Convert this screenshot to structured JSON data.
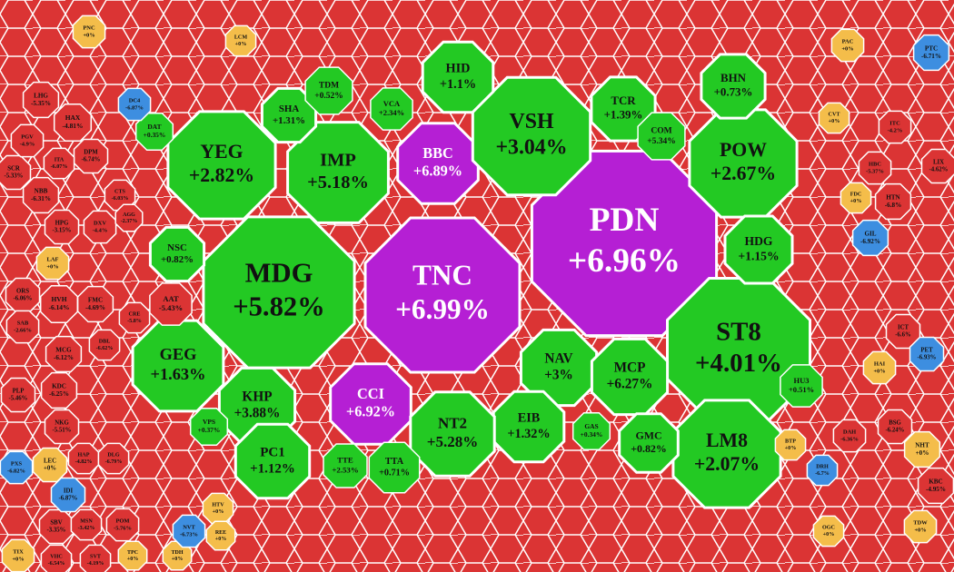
{
  "chart_data": {
    "type": "voronoi-treemap",
    "categories": [
      "TNC",
      "PDN",
      "MDG",
      "ST8",
      "BBC",
      "CCI",
      "VSH",
      "YEG",
      "IMP",
      "POW",
      "HDG",
      "NAV",
      "MCP",
      "EIB",
      "NT2",
      "LM8",
      "GEG",
      "KHP",
      "PC1",
      "HID",
      "TCR",
      "COM",
      "BHN",
      "SHA",
      "TDM",
      "NSC",
      "AAT",
      "GMC",
      "GAS",
      "HU3",
      "TTA",
      "TTE",
      "VPS",
      "VCA",
      "DAT",
      "HAX",
      "DPM",
      "NBB",
      "SCR",
      "HPG",
      "DXV",
      "FMC",
      "HVH",
      "CRE",
      "ORS",
      "SAB",
      "MCG",
      "KDC",
      "PLP",
      "NKG",
      "HAP",
      "DLG",
      "LHG",
      "PGV",
      "ITA",
      "CTS",
      "AGG",
      "DBL",
      "KBC",
      "ICT",
      "HTN",
      "LIX",
      "ITC",
      "HBC",
      "BSG",
      "DAH",
      "SBV",
      "MSN",
      "POM",
      "VHC",
      "SVT",
      "PNC",
      "LAF",
      "LEC",
      "BTP",
      "NHT",
      "TIX",
      "CVT",
      "FDC",
      "HAI",
      "PAC",
      "LCM",
      "TDW",
      "HTV",
      "REE",
      "OGC",
      "TPC",
      "TDH",
      "DC4",
      "PTC",
      "GIL",
      "PET",
      "NVT",
      "IDI",
      "PXS",
      "DRH"
    ],
    "values": [
      6.99,
      6.96,
      5.82,
      4.01,
      6.89,
      6.92,
      3.04,
      2.82,
      5.18,
      2.67,
      1.15,
      3,
      6.27,
      1.32,
      5.28,
      2.07,
      1.63,
      3.88,
      1.12,
      1.1,
      1.39,
      5.34,
      0.73,
      1.31,
      0.52,
      0.82,
      -5.43,
      0.82,
      0.34,
      0.51,
      0.71,
      2.53,
      0.37,
      2.34,
      0.35,
      -4.81,
      -6.74,
      -6.31,
      -5.33,
      -3.15,
      -4.4,
      -4.69,
      -6.14,
      -5.8,
      -6.06,
      -2.66,
      -6.12,
      -6.25,
      -5.46,
      -5.51,
      -4.82,
      -6.79,
      -5.35,
      -4.9,
      -6.07,
      -6.03,
      -2.37,
      -6.62,
      -4.95,
      -6.6,
      -6.8,
      -4.62,
      -4.2,
      -5.37,
      -6.24,
      -6.36,
      -3.35,
      -3.42,
      -5.76,
      -6.54,
      -4.19,
      0,
      0,
      0,
      0,
      0,
      0,
      0,
      0,
      0,
      0,
      0,
      0,
      0,
      0,
      0,
      0,
      0,
      -6.87,
      -6.71,
      -6.92,
      -6.93,
      -6.73,
      -6.87,
      -6.82,
      -6.7
    ],
    "value_labels": [
      "+6.99%",
      "+6.96%",
      "+5.82%",
      "+4.01%",
      "+6.89%",
      "+6.92%",
      "+3.04%",
      "+2.82%",
      "+5.18%",
      "+2.67%",
      "+1.15%",
      "+3%",
      "+6.27%",
      "+1.32%",
      "+5.28%",
      "+2.07%",
      "+1.63%",
      "+3.88%",
      "+1.12%",
      "+1.1%",
      "+1.39%",
      "+5.34%",
      "+0.73%",
      "+1.31%",
      "+0.52%",
      "+0.82%",
      "-5.43%",
      "+0.82%",
      "+0.34%",
      "+0.51%",
      "+0.71%",
      "+2.53%",
      "+0.37%",
      "+2.34%",
      "+0.35%",
      "-4.81%",
      "-6.74%",
      "-6.31%",
      "-5.33%",
      "-3.15%",
      "-4.4%",
      "-4.69%",
      "-6.14%",
      "-5.8%",
      "-6.06%",
      "-2.66%",
      "-6.12%",
      "-6.25%",
      "-5.46%",
      "-5.51%",
      "-4.82%",
      "-6.79%",
      "-5.35%",
      "-4.9%",
      "-6.07%",
      "-6.03%",
      "-2.37%",
      "-6.62%",
      "-4.95%",
      "-6.6%",
      "-6.8%",
      "-4.62%",
      "-4.2%",
      "-5.37%",
      "-6.24%",
      "-6.36%",
      "-3.35%",
      "-3.42%",
      "-5.76%",
      "-6.54%",
      "-4.19%",
      "+0%",
      "+0%",
      "+0%",
      "+0%",
      "+0%",
      "+0%",
      "+0%",
      "+0%",
      "+0%",
      "+0%",
      "+0%",
      "+0%",
      "+0%",
      "+0%",
      "+0%",
      "+0%",
      "+0%",
      "-6.87%",
      "-6.71%",
      "-6.92%",
      "-6.93%",
      "-6.73%",
      "-6.87%",
      "-6.82%",
      "-6.7%"
    ],
    "colors": [
      "#b51fd4",
      "#b51fd4",
      "#23c923",
      "#23c923",
      "#b51fd4",
      "#b51fd4",
      "#23c923",
      "#23c923",
      "#23c923",
      "#23c923",
      "#23c923",
      "#23c923",
      "#23c923",
      "#23c923",
      "#23c923",
      "#23c923",
      "#23c923",
      "#23c923",
      "#23c923",
      "#23c923",
      "#23c923",
      "#23c923",
      "#23c923",
      "#23c923",
      "#23c923",
      "#23c923",
      "#db3434",
      "#23c923",
      "#23c923",
      "#23c923",
      "#23c923",
      "#23c923",
      "#23c923",
      "#23c923",
      "#23c923",
      "#db3434",
      "#db3434",
      "#db3434",
      "#db3434",
      "#db3434",
      "#db3434",
      "#db3434",
      "#db3434",
      "#db3434",
      "#db3434",
      "#db3434",
      "#db3434",
      "#db3434",
      "#db3434",
      "#db3434",
      "#db3434",
      "#db3434",
      "#db3434",
      "#db3434",
      "#db3434",
      "#db3434",
      "#db3434",
      "#db3434",
      "#db3434",
      "#db3434",
      "#db3434",
      "#db3434",
      "#db3434",
      "#db3434",
      "#db3434",
      "#db3434",
      "#db3434",
      "#db3434",
      "#db3434",
      "#db3434",
      "#db3434",
      "#f4bd4a",
      "#f4bd4a",
      "#f4bd4a",
      "#f4bd4a",
      "#f4bd4a",
      "#f4bd4a",
      "#f4bd4a",
      "#f4bd4a",
      "#f4bd4a",
      "#f4bd4a",
      "#f4bd4a",
      "#f4bd4a",
      "#f4bd4a",
      "#f4bd4a",
      "#f4bd4a",
      "#f4bd4a",
      "#f4bd4a",
      "#3d8ee0",
      "#3d8ee0",
      "#3d8ee0",
      "#3d8ee0",
      "#3d8ee0",
      "#3d8ee0",
      "#3d8ee0",
      "#3d8ee0"
    ]
  }
}
